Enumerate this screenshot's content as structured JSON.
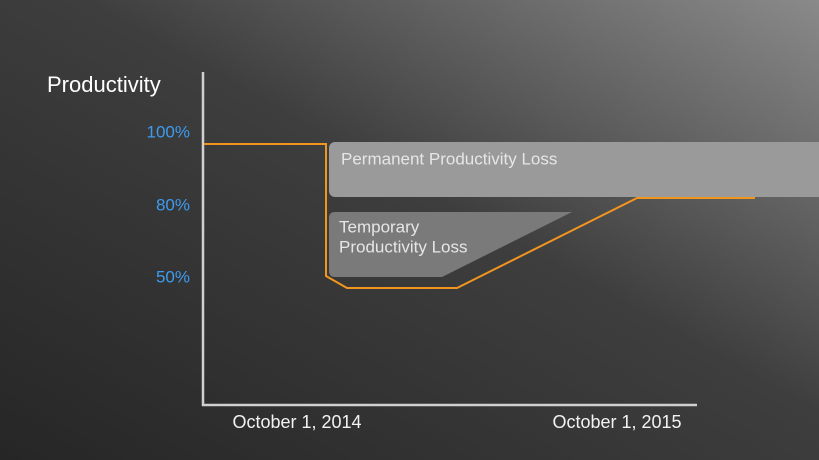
{
  "title": "Productivity",
  "y_labels": [
    "100%",
    "80%",
    "50%"
  ],
  "x_labels": [
    "October 1, 2014",
    "October 1, 2015"
  ],
  "regions": {
    "permanent": {
      "label": "Permanent Productivity Loss"
    },
    "temporary": {
      "label_lines": [
        "Temporary",
        "Productivity Loss"
      ]
    }
  }
}
